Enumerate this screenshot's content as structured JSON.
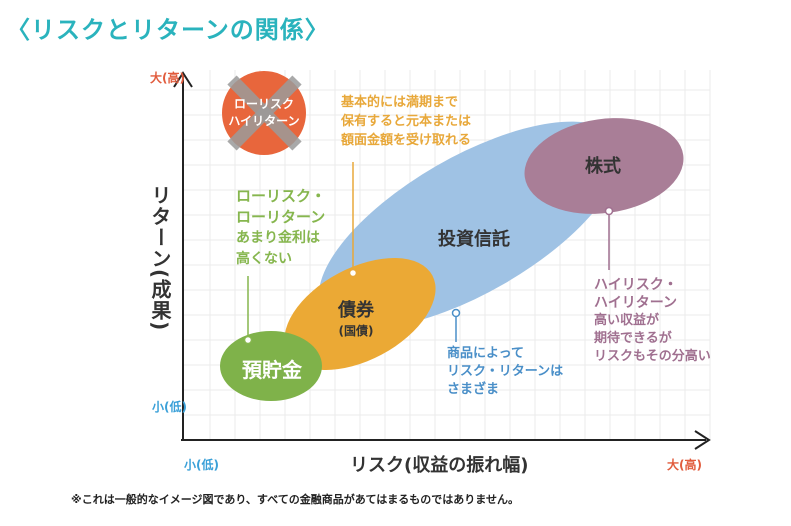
{
  "title": "〈リスクとリターンの関係〉",
  "y_axis": {
    "label_line1": "リターン",
    "label_line2": "(成果)",
    "top": "大(高)",
    "bottom": "小(低)"
  },
  "x_axis": {
    "label": "リスク(収益の振れ幅)",
    "left": "小(低)",
    "right": "大(高)"
  },
  "products": {
    "deposit": "預貯金",
    "bond": "債券",
    "bond_sub": "(国債)",
    "trust": "投資信託",
    "stock": "株式"
  },
  "crossed_out": {
    "line1": "ローリスク",
    "line2": "ハイリターン"
  },
  "annotations": {
    "bond": [
      "基本的には満期まで",
      "保有すると元本または",
      "額面金額を受け取れる"
    ],
    "deposit": {
      "head": [
        "ローリスク・",
        "ローリターン"
      ],
      "body": [
        "あまり金利は",
        "高くない"
      ]
    },
    "trust": [
      "商品によって",
      "リスク・リターンは",
      "さまざま"
    ],
    "stock": {
      "head": [
        "ハイリスク・",
        "ハイリターン"
      ],
      "body": [
        "高い収益が",
        "期待できるが",
        "リスクもその分高い"
      ]
    }
  },
  "note": "※これは一般的なイメージ図であり、すべての金融商品があてはまるものではありません。",
  "colors": {
    "title": "#2ab3bd",
    "deposit": "#7fb24a",
    "bond": "#eba935",
    "trust": "#9fc2e4",
    "stock": "#a97e97",
    "forbidden": "#e8663c",
    "axis_high": "#e15b3c",
    "axis_low": "#3aa0d8"
  }
}
